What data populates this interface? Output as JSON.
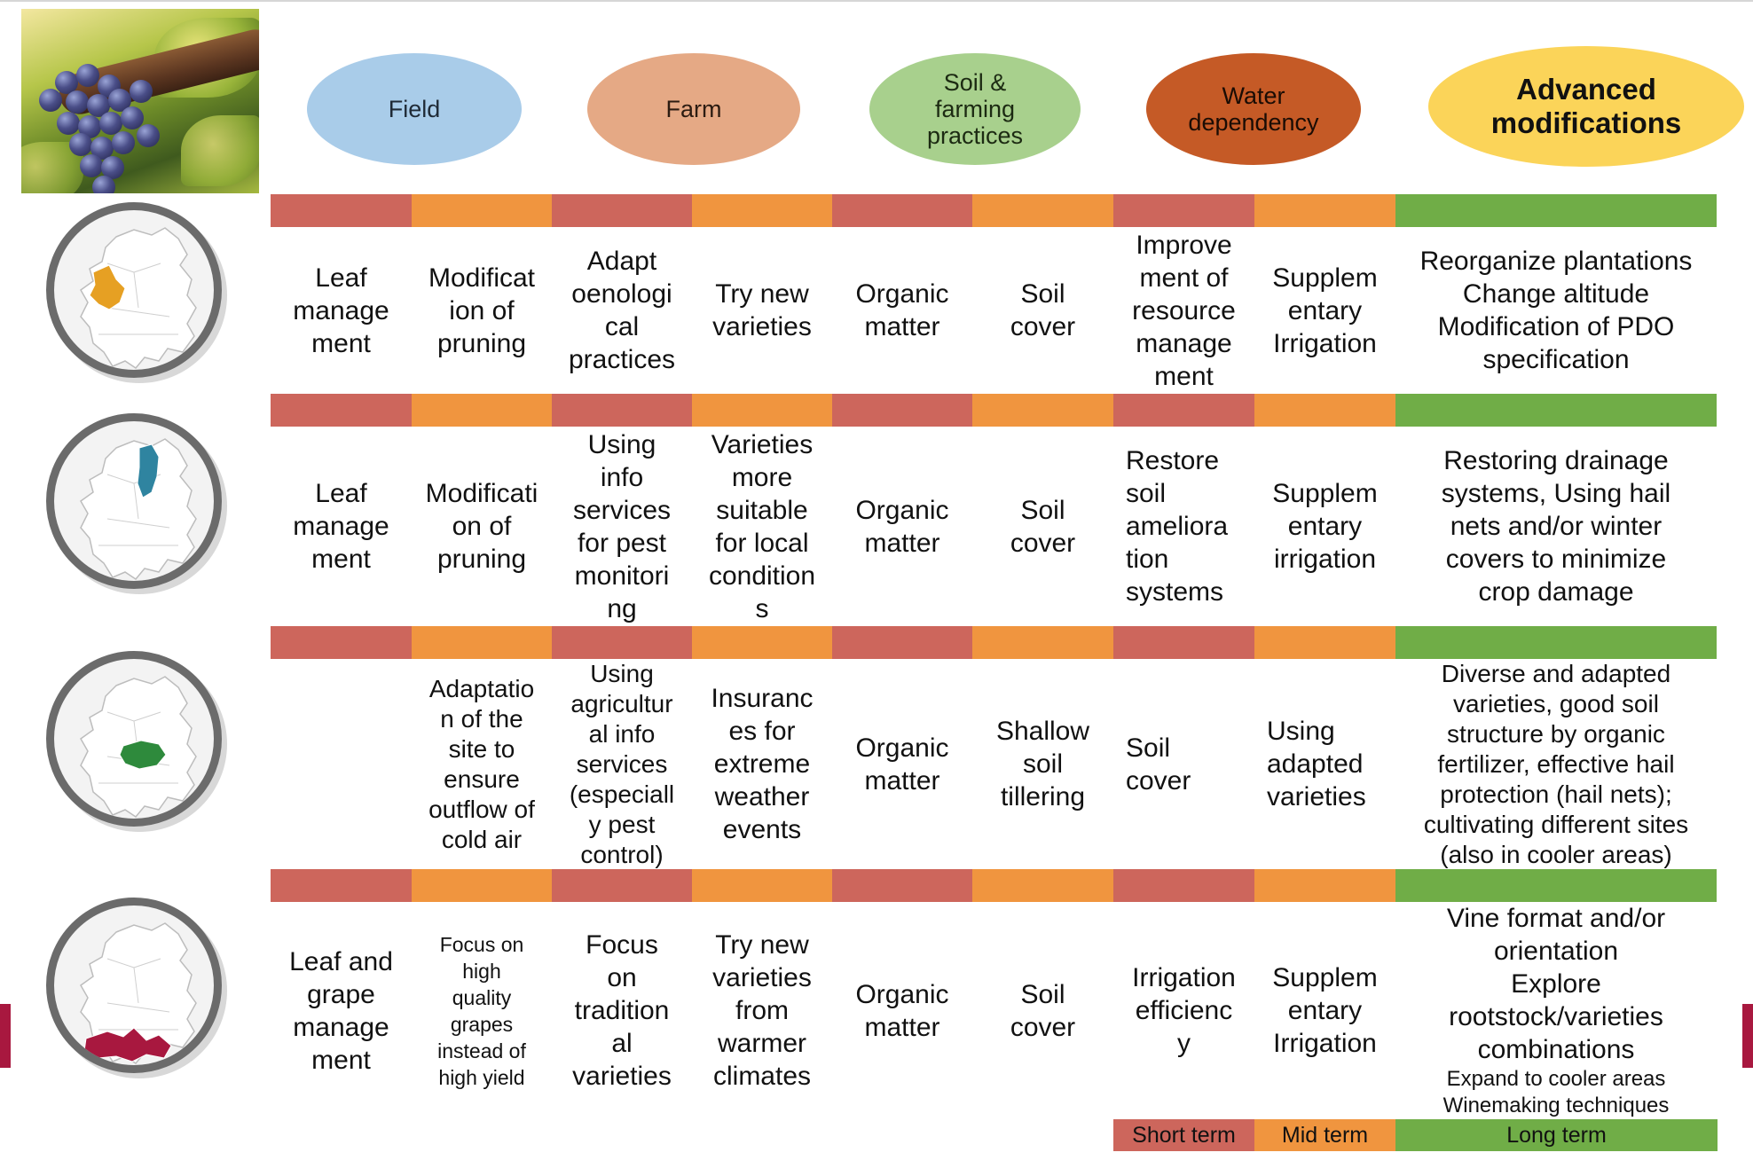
{
  "headers": [
    {
      "lines": [
        "Field"
      ],
      "color": "#a9cce9",
      "text_color": "#1f2a36",
      "weight": "normal"
    },
    {
      "lines": [
        "Farm"
      ],
      "color": "#e5a985",
      "text_color": "#2c1c12",
      "weight": "normal"
    },
    {
      "lines": [
        "Soil &",
        "farming",
        "practices"
      ],
      "color": "#a8d08d",
      "text_color": "#1c2a12",
      "weight": "normal"
    },
    {
      "lines": [
        "Water",
        "dependency"
      ],
      "color": "#c55a26",
      "text_color": "#1a0c04",
      "weight": "normal"
    },
    {
      "lines": [
        "Advanced",
        "modifications"
      ],
      "color": "#fbd459",
      "text_color": "#111111",
      "weight": "bold"
    }
  ],
  "bar_colors": {
    "short": "#cd665c",
    "mid": "#f0953f",
    "long": "#70ad47"
  },
  "region_colors": [
    "#e6a023",
    "#2f84a0",
    "#2e8a3c",
    "#a8183f"
  ],
  "rows": [
    {
      "region": "western",
      "cells": [
        {
          "lines": [
            "Leaf",
            "manage",
            "ment"
          ]
        },
        {
          "lines": [
            "Modificat",
            "ion of",
            "pruning"
          ]
        },
        {
          "lines": [
            "Adapt",
            "oenologi",
            "cal",
            "practices"
          ]
        },
        {
          "lines": [
            "Try new",
            "varieties"
          ]
        },
        {
          "lines": [
            "Organic",
            "matter"
          ]
        },
        {
          "lines": [
            "Soil",
            "cover"
          ]
        },
        {
          "lines": [
            "Improve",
            "ment of",
            "resource",
            "manage",
            "ment"
          ]
        },
        {
          "lines": [
            "Supplem",
            "entary",
            "Irrigation"
          ]
        },
        {
          "lines": [
            "Reorganize plantations",
            "Change altitude",
            "Modification of PDO",
            "specification"
          ]
        }
      ]
    },
    {
      "region": "northern",
      "cells": [
        {
          "lines": [
            "Leaf",
            "manage",
            "ment"
          ]
        },
        {
          "lines": [
            "Modificati",
            "on of",
            "pruning"
          ]
        },
        {
          "lines": [
            "Using",
            "info",
            "services",
            "for pest",
            "monitori",
            "ng"
          ]
        },
        {
          "lines": [
            "Varieties",
            "more",
            "suitable",
            "for local",
            "condition",
            "s"
          ]
        },
        {
          "lines": [
            "Organic",
            "matter"
          ]
        },
        {
          "lines": [
            "Soil",
            "cover"
          ]
        },
        {
          "lines": [
            "Restore",
            "soil",
            "ameliora",
            "tion",
            "systems"
          ]
        },
        {
          "lines": [
            "Supplem",
            "entary",
            "irrigation"
          ]
        },
        {
          "lines": [
            "Restoring drainage",
            "systems, Using hail",
            "nets and/or winter",
            "covers to minimize",
            "crop damage"
          ]
        }
      ]
    },
    {
      "region": "central",
      "cells": [
        {
          "lines": []
        },
        {
          "lines": [
            "Adaptatio",
            "n of the",
            "site to",
            "ensure",
            "outflow of",
            "cold air"
          ]
        },
        {
          "lines": [
            "Using",
            "agricultur",
            "al info",
            "services",
            "(especiall",
            "y pest",
            "control)"
          ]
        },
        {
          "lines": [
            "Insuranc",
            "es for",
            "extreme",
            "weather",
            "events"
          ]
        },
        {
          "lines": [
            "Organic",
            "matter"
          ]
        },
        {
          "lines": [
            "Shallow",
            "soil",
            "tillering"
          ]
        },
        {
          "lines": [
            "Soil",
            "cover"
          ]
        },
        {
          "lines": [
            "Using",
            "adapted",
            "varieties"
          ]
        },
        {
          "lines": [
            "Diverse and adapted",
            "varieties, good soil",
            "structure by organic",
            "fertilizer, effective hail",
            "protection (hail nets);",
            "cultivating different sites",
            "(also in cooler areas)"
          ]
        }
      ]
    },
    {
      "region": "southern",
      "cells": [
        {
          "lines": [
            "Leaf and",
            "grape",
            "manage",
            "ment"
          ]
        },
        {
          "lines": [
            "Focus on",
            "high",
            "quality",
            "grapes",
            "instead of",
            "high yield"
          ]
        },
        {
          "lines": [
            "Focus",
            "on",
            "tradition",
            "al",
            "varieties"
          ]
        },
        {
          "lines": [
            "Try new",
            "varieties",
            "from",
            "warmer",
            "climates"
          ]
        },
        {
          "lines": [
            "Organic",
            "matter"
          ]
        },
        {
          "lines": [
            "Soil",
            "cover"
          ]
        },
        {
          "lines": [
            "Irrigation",
            "efficienc",
            "y"
          ]
        },
        {
          "lines": [
            "Supplem",
            "entary",
            "Irrigation"
          ]
        },
        {
          "lines": [
            "Vine format and/or",
            "orientation",
            "Explore",
            "rootstock/varieties",
            "combinations",
            "Expand to cooler areas",
            "Winemaking techniques"
          ]
        }
      ]
    }
  ],
  "legend": {
    "short": "Short term",
    "mid": "Mid term",
    "long": "Long term"
  }
}
